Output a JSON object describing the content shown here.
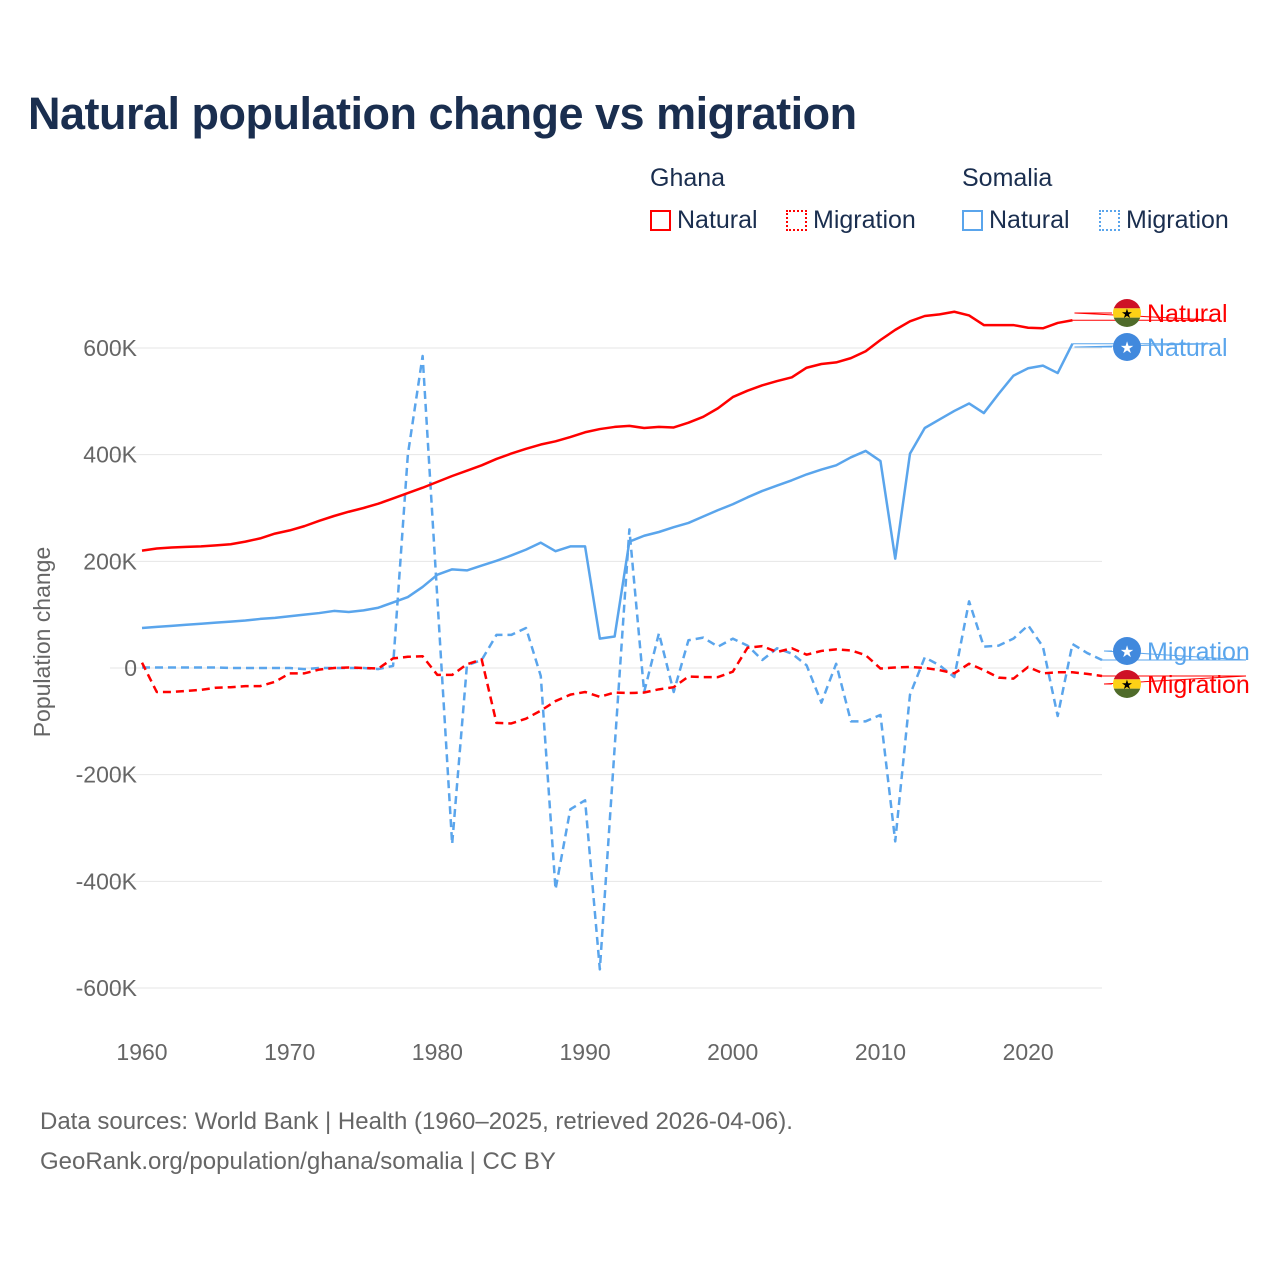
{
  "colors": {
    "ghana": "#ff0000",
    "somalia": "#5aa5ec",
    "title": "#1a2e4f",
    "grid": "#e6e6e6",
    "axis_text": "#666666"
  },
  "title": "Natural population change vs migration",
  "legend": {
    "groups": [
      {
        "name": "Ghana",
        "items": [
          {
            "label": "Natural",
            "style": "solid"
          },
          {
            "label": "Migration",
            "style": "dotted"
          }
        ]
      },
      {
        "name": "Somalia",
        "items": [
          {
            "label": "Natural",
            "style": "solid"
          },
          {
            "label": "Migration",
            "style": "dotted"
          }
        ]
      }
    ]
  },
  "end_labels": {
    "ghana_natural": "Natural",
    "somalia_natural": "Natural",
    "somalia_migration": "Migration",
    "ghana_migration": "Migration"
  },
  "footer": {
    "line1": "Data sources: World Bank | Health (1960–2025, retrieved 2026-04-06).",
    "line2": "GeoRank.org/population/ghana/somalia | CC BY"
  },
  "chart_data": {
    "type": "line",
    "title": "Natural population change vs migration",
    "xlabel": "",
    "ylabel": "Population change",
    "xlim": [
      1960,
      2025
    ],
    "ylim": [
      -600000,
      600000
    ],
    "x_ticks": [
      1960,
      1970,
      1980,
      1990,
      2000,
      2010,
      2020
    ],
    "x_tick_labels": [
      "1960",
      "1970",
      "1980",
      "1990",
      "2000",
      "2010",
      "2020"
    ],
    "y_ticks": [
      600000,
      400000,
      200000,
      0,
      -200000,
      -400000,
      -600000
    ],
    "y_tick_labels": [
      "600K",
      "400K",
      "200K",
      "0",
      "-200K",
      "-400K",
      "-600K"
    ],
    "grid": true,
    "legend_position": "top-right",
    "start_year": 1960,
    "unit": "thousands",
    "series": [
      {
        "name": "Ghana Natural",
        "country": "Ghana",
        "kind": "natural",
        "color": "#ff0000",
        "dash": false,
        "values": [
          220,
          224,
          226,
          227,
          228,
          230,
          232,
          237,
          243,
          252,
          258,
          266,
          276,
          285,
          293,
          300,
          308,
          318,
          328,
          338,
          349,
          360,
          370,
          380,
          392,
          402,
          411,
          419,
          425,
          433,
          442,
          448,
          452,
          454,
          450,
          452,
          451,
          460,
          471,
          487,
          508,
          520,
          530,
          538,
          545,
          563,
          570,
          573,
          581,
          594,
          615,
          634,
          650,
          660,
          663,
          668,
          661,
          643,
          643,
          643,
          638,
          637,
          647,
          652
        ]
      },
      {
        "name": "Somalia Natural",
        "country": "Somalia",
        "kind": "natural",
        "color": "#5aa5ec",
        "dash": false,
        "values": [
          75,
          77,
          79,
          81,
          83,
          85,
          87,
          89,
          92,
          94,
          97,
          100,
          103,
          107,
          105,
          108,
          113,
          123,
          133,
          152,
          175,
          185,
          183,
          192,
          201,
          211,
          222,
          235,
          219,
          228,
          228,
          55,
          59,
          237,
          248,
          255,
          264,
          272,
          284,
          296,
          307,
          320,
          332,
          342,
          352,
          363,
          372,
          380,
          395,
          407,
          388,
          205,
          402,
          450,
          466,
          482,
          496,
          478,
          514,
          548,
          562,
          567,
          553,
          608
        ]
      },
      {
        "name": "Ghana Migration",
        "country": "Ghana",
        "kind": "migration",
        "color": "#ff0000",
        "dash": true,
        "values": [
          10,
          -45,
          -45,
          -43,
          -41,
          -37,
          -36,
          -34,
          -34,
          -26,
          -10,
          -10,
          -3,
          0,
          1,
          0,
          -1,
          18,
          21,
          22,
          -13,
          -13,
          7,
          16,
          -103,
          -104,
          -95,
          -80,
          -62,
          -50,
          -45,
          -54,
          -46,
          -47,
          -46,
          -40,
          -36,
          -16,
          -17,
          -17,
          -7,
          38,
          41,
          30,
          37,
          25,
          32,
          35,
          33,
          24,
          -1,
          1,
          2,
          0,
          -4,
          -10,
          8,
          -4,
          -18,
          -20,
          2,
          -10,
          -8,
          -8,
          -11,
          -15
        ]
      },
      {
        "name": "Somalia Migration",
        "country": "Somalia",
        "kind": "migration",
        "color": "#5aa5ec",
        "dash": true,
        "values": [
          1,
          1,
          1,
          1,
          1,
          1,
          0,
          0,
          0,
          0,
          0,
          -2,
          0,
          0,
          0,
          0,
          -2,
          4,
          400,
          585,
          130,
          -330,
          5,
          15,
          62,
          62,
          75,
          -15,
          -415,
          -265,
          -248,
          -565,
          -150,
          260,
          -45,
          65,
          -45,
          52,
          57,
          40,
          55,
          42,
          15,
          37,
          27,
          5,
          -65,
          8,
          -100,
          -100,
          -88,
          -325,
          -50,
          20,
          5,
          -17,
          125,
          40,
          42,
          55,
          80,
          40,
          -90,
          45,
          28,
          15
        ]
      }
    ]
  }
}
